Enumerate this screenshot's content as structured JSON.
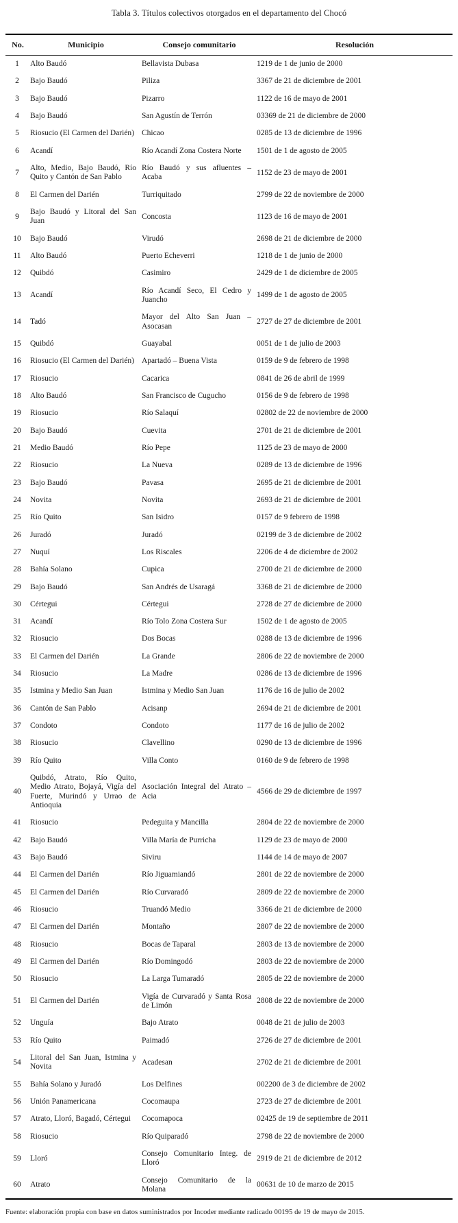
{
  "title": "Tabla 3. Títulos colectivos otorgados en el departamento del Chocó",
  "table": {
    "headers": [
      "No.",
      "Municipio",
      "Consejo comunitario",
      "Resolución"
    ],
    "rows": [
      [
        "1",
        "Alto Baudó",
        "Bellavista Dubasa",
        "1219 de 1 de junio de 2000"
      ],
      [
        "2",
        "Bajo Baudó",
        "Piliza",
        "3367 de 21 de diciembre de 2001"
      ],
      [
        "3",
        "Bajo Baudó",
        "Pizarro",
        "1122 de 16 de mayo de 2001"
      ],
      [
        "4",
        "Bajo Baudó",
        "San Agustín de Terrón",
        "03369 de 21 de diciembre de 2000"
      ],
      [
        "5",
        "Riosucio (El Carmen del Darién)",
        "Chicao",
        "0285 de 13 de diciembre de 1996"
      ],
      [
        "6",
        "Acandí",
        "Río Acandí Zona Costera Norte",
        "1501 de 1 de agosto de 2005"
      ],
      [
        "7",
        "Alto, Medio, Bajo Baudó, Río Quito y Cantón de San Pablo",
        "Río Baudó y sus afluentes – Acaba",
        "1152 de 23 de mayo de 2001"
      ],
      [
        "8",
        "El Carmen del Darién",
        "Turriquitado",
        "2799 de 22 de noviembre de 2000"
      ],
      [
        "9",
        "Bajo Baudó y Litoral del San Juan",
        "Concosta",
        "1123 de 16 de mayo de 2001"
      ],
      [
        "10",
        "Bajo Baudó",
        "Virudó",
        "2698 de 21 de diciembre de 2000"
      ],
      [
        "11",
        "Alto Baudó",
        "Puerto Echeverri",
        "1218 de 1 de junio de 2000"
      ],
      [
        "12",
        "Quibdó",
        "Casimiro",
        "2429 de 1 de diciembre de 2005"
      ],
      [
        "13",
        "Acandí",
        "Río Acandí Seco, El Cedro y Juancho",
        "1499 de 1 de agosto de 2005"
      ],
      [
        "14",
        "Tadó",
        "Mayor del Alto San Juan – Asocasan",
        "2727 de 27 de diciembre de 2001"
      ],
      [
        "15",
        "Quibdó",
        "Guayabal",
        "0051 de 1 de julio de 2003"
      ],
      [
        "16",
        "Riosucio (El Carmen del Darién)",
        "Apartadó – Buena Vista",
        "0159 de 9 de febrero de 1998"
      ],
      [
        "17",
        "Riosucio",
        "Cacarica",
        "0841 de 26 de abril de 1999"
      ],
      [
        "18",
        "Alto Baudó",
        "San Francisco de Cugucho",
        "0156 de 9 de febrero de 1998"
      ],
      [
        "19",
        "Riosucio",
        "Río Salaquí",
        "02802 de 22 de noviembre de 2000"
      ],
      [
        "20",
        "Bajo Baudó",
        "Cuevita",
        "2701 de 21 de diciembre de 2001"
      ],
      [
        "21",
        "Medio Baudó",
        "Río Pepe",
        "1125 de 23 de mayo de 2000"
      ],
      [
        "22",
        "Riosucio",
        "La Nueva",
        "0289 de 13 de diciembre de 1996"
      ],
      [
        "23",
        "Bajo Baudó",
        "Pavasa",
        "2695 de 21 de diciembre de 2001"
      ],
      [
        "24",
        "Novita",
        "Novita",
        "2693 de 21 de diciembre de 2001"
      ],
      [
        "25",
        "Río Quito",
        "San Isidro",
        "0157 de 9 febrero de 1998"
      ],
      [
        "26",
        "Juradó",
        "Juradó",
        "02199 de 3 de diciembre de 2002"
      ],
      [
        "27",
        "Nuquí",
        "Los Riscales",
        "2206 de 4 de diciembre de 2002"
      ],
      [
        "28",
        "Bahía Solano",
        "Cupica",
        "2700 de 21 de diciembre de 2000"
      ],
      [
        "29",
        "Bajo Baudó",
        "San Andrés de Usaragá",
        "3368 de 21 de diciembre de 2000"
      ],
      [
        "30",
        "Cértegui",
        "Cértegui",
        "2728 de 27 de diciembre de 2000"
      ],
      [
        "31",
        "Acandí",
        "Río Tolo Zona Costera Sur",
        "1502 de 1 de agosto de 2005"
      ],
      [
        "32",
        "Riosucio",
        "Dos Bocas",
        "0288 de 13 de diciembre de 1996"
      ],
      [
        "33",
        "El Carmen del Darién",
        "La Grande",
        "2806 de 22 de noviembre de 2000"
      ],
      [
        "34",
        "Riosucio",
        "La Madre",
        "0286 de 13 de diciembre de 1996"
      ],
      [
        "35",
        "Istmina y Medio San Juan",
        "Istmina y Medio San Juan",
        "1176 de 16 de julio de 2002"
      ],
      [
        "36",
        "Cantón de San Pablo",
        "Acisanp",
        "2694 de 21 de diciembre de 2001"
      ],
      [
        "37",
        "Condoto",
        "Condoto",
        "1177 de 16 de julio de 2002"
      ],
      [
        "38",
        "Riosucio",
        "Clavellino",
        "0290 de 13 de diciembre de 1996"
      ],
      [
        "39",
        "Río Quito",
        "Villa Conto",
        "0160 de 9 de febrero de 1998"
      ],
      [
        "40",
        "Quibdó, Atrato, Río Quito, Medio Atrato, Bojayá, Vigía del Fuerte, Murindó y Urrao de Antioquia",
        "Asociación Integral del Atrato – Acia",
        "4566 de 29 de diciembre de 1997"
      ],
      [
        "41",
        "Riosucio",
        "Pedeguita y Mancilla",
        "2804 de 22 de noviembre de 2000"
      ],
      [
        "42",
        "Bajo Baudó",
        "Villa María de Purricha",
        "1129 de 23 de mayo de 2000"
      ],
      [
        "43",
        "Bajo Baudó",
        "Siviru",
        "1144 de 14 de mayo de 2007"
      ],
      [
        "44",
        "El Carmen del Darién",
        "Río Jiguamiandó",
        "2801 de 22 de noviembre de 2000"
      ],
      [
        "45",
        "El Carmen del Darién",
        "Río Curvaradó",
        "2809 de 22 de noviembre de 2000"
      ],
      [
        "46",
        "Riosucio",
        "Truandó Medio",
        "3366 de 21 de diciembre de 2000"
      ],
      [
        "47",
        "El Carmen del Darién",
        "Montaño",
        "2807 de 22 de noviembre de 2000"
      ],
      [
        "48",
        "Riosucio",
        "Bocas de Taparal",
        "2803 de 13 de noviembre de 2000"
      ],
      [
        "49",
        "El Carmen del Darién",
        "Río Domingodó",
        "2803 de 22 de noviembre de 2000"
      ],
      [
        "50",
        "Riosucio",
        "La Larga Tumaradó",
        "2805 de 22 de noviembre de 2000"
      ],
      [
        "51",
        "El Carmen del Darién",
        "Vigía de Curvaradó y Santa Rosa de Limón",
        "2808 de 22 de noviembre de 2000"
      ],
      [
        "52",
        "Unguía",
        "Bajo Atrato",
        "0048 de 21 de julio de 2003"
      ],
      [
        "53",
        "Río Quito",
        "Paimadó",
        "2726 de 27 de diciembre de 2001"
      ],
      [
        "54",
        "Litoral del San Juan, Istmina y Novita",
        "Acadesan",
        "2702 de 21 de diciembre de 2001"
      ],
      [
        "55",
        "Bahía Solano y Juradó",
        "Los Delfines",
        "002200 de 3 de diciembre de 2002"
      ],
      [
        "56",
        "Unión Panamericana",
        "Cocomaupa",
        "2723 de 27 de diciembre de 2001"
      ],
      [
        "57",
        "Atrato, Lloró, Bagadó, Cértegui",
        "Cocomapoca",
        "02425 de 19 de septiembre de 2011"
      ],
      [
        "58",
        "Riosucio",
        "Río Quiparadó",
        "2798 de 22 de noviembre de 2000"
      ],
      [
        "59",
        "Lloró",
        "Consejo Comunitario Integ. de Lloró",
        "2919 de 21 de diciembre de 2012"
      ],
      [
        "60",
        "Atrato",
        "Consejo Comunitario de la Molana",
        "00631 de 10 de marzo de 2015"
      ]
    ]
  },
  "source_note": "Fuente: elaboración propia con base en datos suministrados por Incoder mediante radicado 00195 de 19 de mayo de 2015."
}
